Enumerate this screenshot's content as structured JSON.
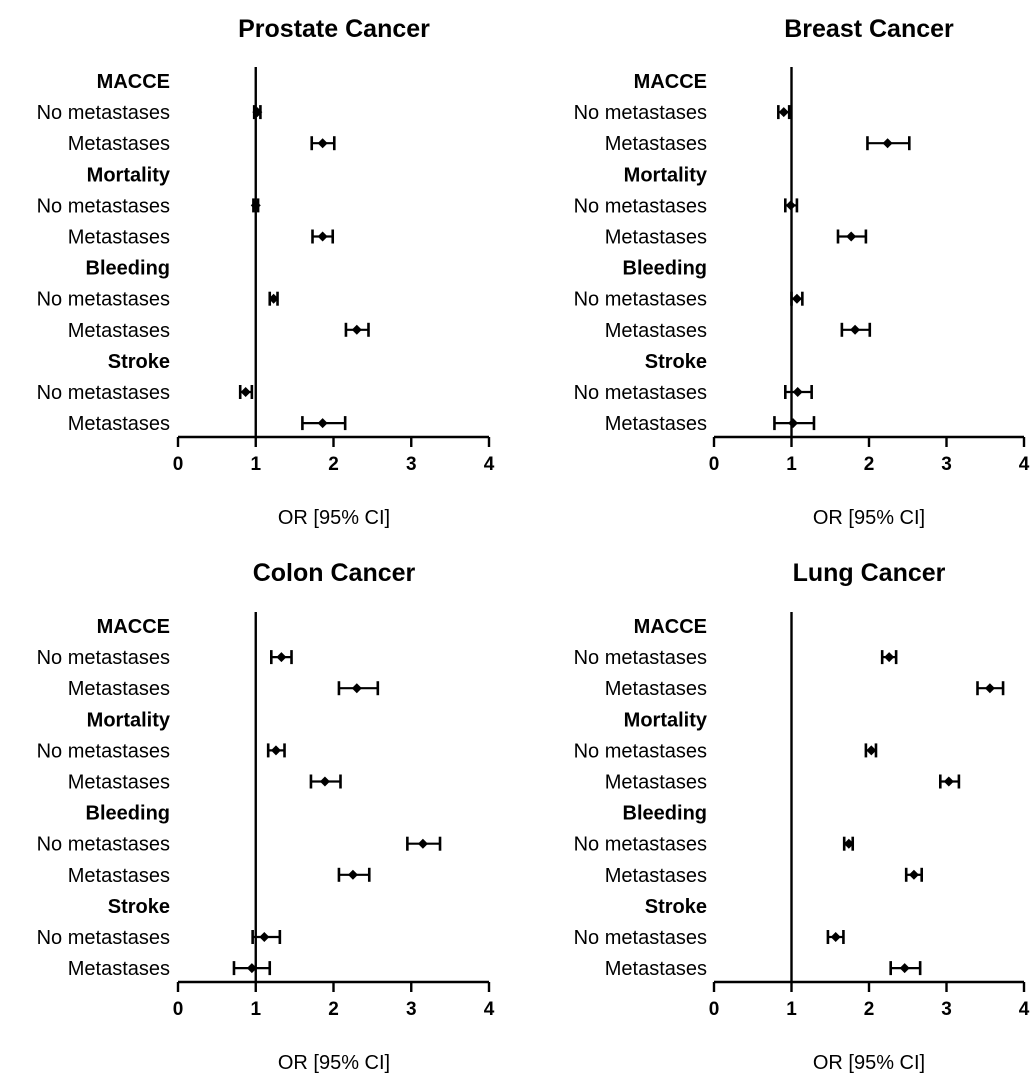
{
  "chart_data": [
    {
      "type": "forest",
      "title": "Prostate Cancer",
      "xlabel": "OR [95% CI]",
      "xlim": [
        0,
        4
      ],
      "xticks": [
        "0",
        "1",
        "2",
        "3",
        "4"
      ],
      "reference_line": 1,
      "grid": false,
      "groups": [
        {
          "label": "MACCE",
          "rows": [
            {
              "label": "No metastases",
              "or": 1.02,
              "lo": 0.98,
              "hi": 1.06
            },
            {
              "label": "Metastases",
              "or": 1.86,
              "lo": 1.72,
              "hi": 2.01
            }
          ]
        },
        {
          "label": "Mortality",
          "rows": [
            {
              "label": "No metastases",
              "or": 1.0,
              "lo": 0.97,
              "hi": 1.03
            },
            {
              "label": "Metastases",
              "or": 1.86,
              "lo": 1.73,
              "hi": 1.99
            }
          ]
        },
        {
          "label": "Bleeding",
          "rows": [
            {
              "label": "No metastases",
              "or": 1.23,
              "lo": 1.18,
              "hi": 1.28
            },
            {
              "label": "Metastases",
              "or": 2.3,
              "lo": 2.16,
              "hi": 2.45
            }
          ]
        },
        {
          "label": "Stroke",
          "rows": [
            {
              "label": "No metastases",
              "or": 0.87,
              "lo": 0.8,
              "hi": 0.95
            },
            {
              "label": "Metastases",
              "or": 1.86,
              "lo": 1.6,
              "hi": 2.15
            }
          ]
        }
      ]
    },
    {
      "type": "forest",
      "title": "Breast Cancer",
      "xlabel": "OR [95% CI]",
      "xlim": [
        0,
        4
      ],
      "xticks": [
        "0",
        "1",
        "2",
        "3",
        "4"
      ],
      "reference_line": 1,
      "grid": false,
      "groups": [
        {
          "label": "MACCE",
          "rows": [
            {
              "label": "No metastases",
              "or": 0.9,
              "lo": 0.83,
              "hi": 0.97
            },
            {
              "label": "Metastases",
              "or": 2.24,
              "lo": 1.98,
              "hi": 2.52
            }
          ]
        },
        {
          "label": "Mortality",
          "rows": [
            {
              "label": "No metastases",
              "or": 0.99,
              "lo": 0.92,
              "hi": 1.07
            },
            {
              "label": "Metastases",
              "or": 1.77,
              "lo": 1.6,
              "hi": 1.96
            }
          ]
        },
        {
          "label": "Bleeding",
          "rows": [
            {
              "label": "No metastases",
              "or": 1.07,
              "lo": 1.0,
              "hi": 1.14
            },
            {
              "label": "Metastases",
              "or": 1.82,
              "lo": 1.65,
              "hi": 2.01
            }
          ]
        },
        {
          "label": "Stroke",
          "rows": [
            {
              "label": "No metastases",
              "or": 1.08,
              "lo": 0.92,
              "hi": 1.26
            },
            {
              "label": "Metastases",
              "or": 1.02,
              "lo": 0.78,
              "hi": 1.29
            }
          ]
        }
      ]
    },
    {
      "type": "forest",
      "title": "Colon Cancer",
      "xlabel": "OR [95% CI]",
      "xlim": [
        0,
        4
      ],
      "xticks": [
        "0",
        "1",
        "2",
        "3",
        "4"
      ],
      "reference_line": 1,
      "grid": false,
      "groups": [
        {
          "label": "MACCE",
          "rows": [
            {
              "label": "No metastases",
              "or": 1.33,
              "lo": 1.2,
              "hi": 1.46
            },
            {
              "label": "Metastases",
              "or": 2.3,
              "lo": 2.07,
              "hi": 2.57
            }
          ]
        },
        {
          "label": "Mortality",
          "rows": [
            {
              "label": "No metastases",
              "or": 1.26,
              "lo": 1.16,
              "hi": 1.37
            },
            {
              "label": "Metastases",
              "or": 1.89,
              "lo": 1.71,
              "hi": 2.09
            }
          ]
        },
        {
          "label": "Bleeding",
          "rows": [
            {
              "label": "No metastases",
              "or": 3.15,
              "lo": 2.95,
              "hi": 3.37
            },
            {
              "label": "Metastases",
              "or": 2.25,
              "lo": 2.07,
              "hi": 2.46
            }
          ]
        },
        {
          "label": "Stroke",
          "rows": [
            {
              "label": "No metastases",
              "or": 1.11,
              "lo": 0.96,
              "hi": 1.31
            },
            {
              "label": "Metastases",
              "or": 0.95,
              "lo": 0.72,
              "hi": 1.18
            }
          ]
        }
      ]
    },
    {
      "type": "forest",
      "title": "Lung Cancer",
      "xlabel": "OR [95% CI]",
      "xlim": [
        0,
        4
      ],
      "xticks": [
        "0",
        "1",
        "2",
        "3",
        "4"
      ],
      "reference_line": 1,
      "grid": false,
      "groups": [
        {
          "label": "MACCE",
          "rows": [
            {
              "label": "No metastases",
              "or": 2.26,
              "lo": 2.17,
              "hi": 2.35
            },
            {
              "label": "Metastases",
              "or": 3.56,
              "lo": 3.4,
              "hi": 3.73
            }
          ]
        },
        {
          "label": "Mortality",
          "rows": [
            {
              "label": "No metastases",
              "or": 2.03,
              "lo": 1.96,
              "hi": 2.09
            },
            {
              "label": "Metastases",
              "or": 3.03,
              "lo": 2.92,
              "hi": 3.16
            }
          ]
        },
        {
          "label": "Bleeding",
          "rows": [
            {
              "label": "No metastases",
              "or": 1.74,
              "lo": 1.68,
              "hi": 1.79
            },
            {
              "label": "Metastases",
              "or": 2.58,
              "lo": 2.48,
              "hi": 2.68
            }
          ]
        },
        {
          "label": "Stroke",
          "rows": [
            {
              "label": "No metastases",
              "or": 1.57,
              "lo": 1.47,
              "hi": 1.67
            },
            {
              "label": "Metastases",
              "or": 2.46,
              "lo": 2.28,
              "hi": 2.66
            }
          ]
        }
      ]
    }
  ]
}
